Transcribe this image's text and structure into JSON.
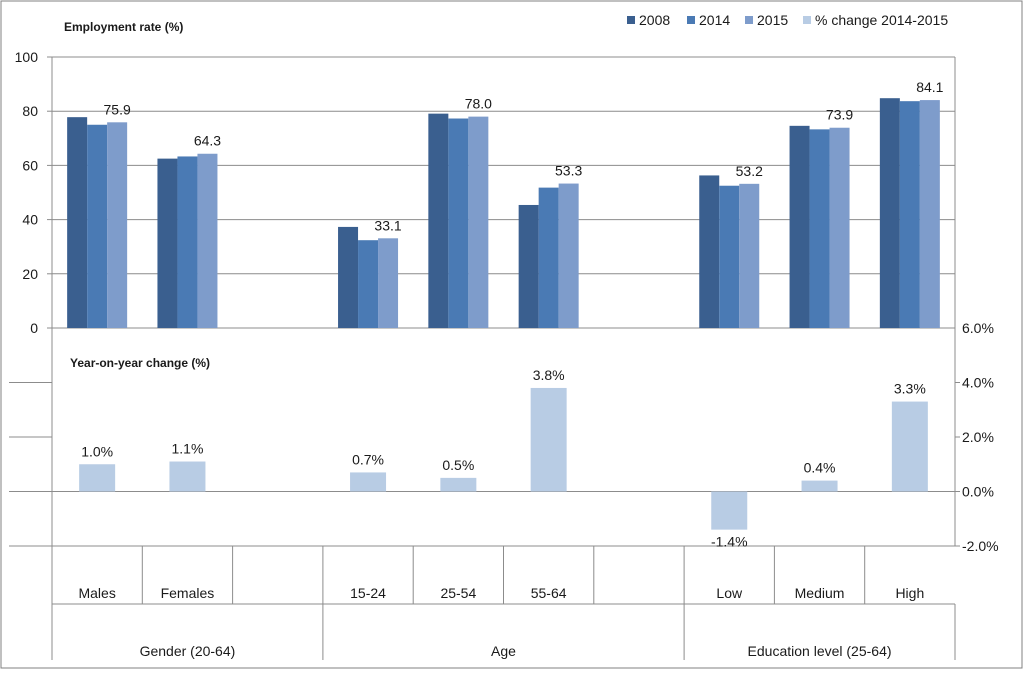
{
  "chart_data": {
    "type": "bar",
    "legend": {
      "placement": "top-right",
      "entries": [
        {
          "key": "s2008",
          "label": "2008",
          "color": "#3a5f8f"
        },
        {
          "key": "s2014",
          "label": "2014",
          "color": "#4a7ab4"
        },
        {
          "key": "s2015",
          "label": "2015",
          "color": "#7e9ccb"
        },
        {
          "key": "change",
          "label": "% change 2014-2015",
          "color": "#b8cce4"
        }
      ]
    },
    "categories": [
      "Males",
      "Females",
      "",
      "15-24",
      "25-54",
      "55-64",
      "",
      "Low",
      "Medium",
      "High"
    ],
    "groups": [
      {
        "label": "Gender (20-64)",
        "span": [
          0,
          2
        ]
      },
      {
        "label": "Age",
        "span": [
          3,
          6
        ]
      },
      {
        "label": "Education level (25-64)",
        "span": [
          7,
          9
        ]
      }
    ],
    "top_panel": {
      "title": "Employment rate (%)",
      "ylim": [
        0,
        100
      ],
      "yticks": [
        "0",
        "20",
        "40",
        "60",
        "80",
        "100"
      ],
      "grid": true,
      "series": [
        {
          "name": "2008",
          "key": "s2008",
          "values": [
            77.8,
            62.5,
            null,
            37.3,
            79.1,
            45.4,
            null,
            56.3,
            74.6,
            84.8
          ]
        },
        {
          "name": "2014",
          "key": "s2014",
          "values": [
            75.0,
            63.3,
            null,
            32.4,
            77.3,
            51.8,
            null,
            52.5,
            73.3,
            83.7
          ]
        },
        {
          "name": "2015",
          "key": "s2015",
          "values": [
            75.9,
            64.3,
            null,
            33.1,
            78.0,
            53.3,
            null,
            53.2,
            73.9,
            84.1
          ]
        }
      ],
      "data_labels": [
        "75.9",
        "64.3",
        null,
        "33.1",
        "78.0",
        "53.3",
        null,
        "53.2",
        "73.9",
        "84.1"
      ]
    },
    "bottom_panel": {
      "title": "Year-on-year change (%)",
      "ylim": [
        -2,
        6
      ],
      "yticks": [
        "-2.0%",
        "0.0%",
        "2.0%",
        "4.0%",
        "6.0%"
      ],
      "series": [
        {
          "name": "% change 2014-2015",
          "key": "change",
          "values": [
            1.0,
            1.1,
            null,
            0.7,
            0.5,
            3.8,
            null,
            -1.4,
            0.4,
            3.3
          ]
        }
      ],
      "data_labels": [
        "1.0%",
        "1.1%",
        null,
        "0.7%",
        "0.5%",
        "3.8%",
        null,
        "-1.4%",
        "0.4%",
        "3.3%"
      ]
    }
  }
}
